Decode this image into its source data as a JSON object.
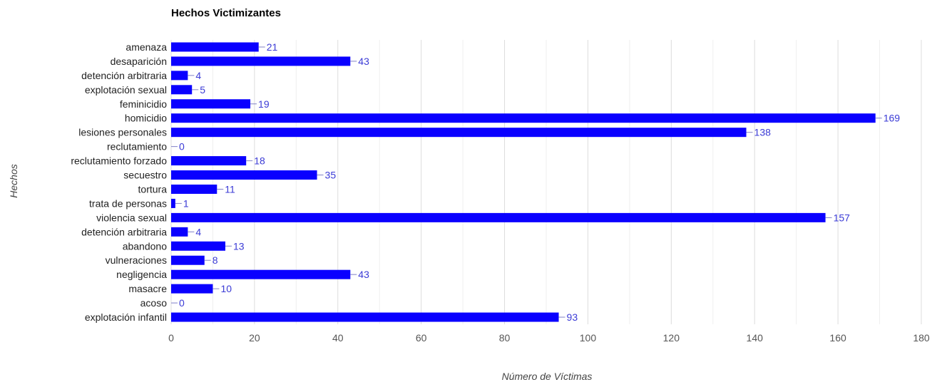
{
  "chart_data": {
    "type": "bar",
    "orientation": "horizontal",
    "title": "Hechos Victimizantes",
    "xlabel": "Número de Víctimas",
    "ylabel": "Hechos",
    "categories": [
      "amenaza",
      "desaparición",
      "detención arbitraria",
      "explotación sexual",
      "feminicidio",
      "homicidio",
      "lesiones personales",
      "reclutamiento",
      "reclutamiento forzado",
      "secuestro",
      "tortura",
      "trata de personas",
      "violencia sexual",
      "detención arbitraria",
      "abandono",
      "vulneraciones",
      "negligencia",
      "masacre",
      "acoso",
      "explotación infantil"
    ],
    "values": [
      21,
      43,
      4,
      5,
      19,
      169,
      138,
      0,
      18,
      35,
      11,
      1,
      157,
      4,
      13,
      8,
      43,
      10,
      0,
      93
    ],
    "xlim": [
      0,
      180
    ],
    "xticks": [
      0,
      20,
      40,
      60,
      80,
      100,
      120,
      140,
      160,
      180
    ],
    "grid": true,
    "colors": {
      "bar": "#0a00ff",
      "label": "#3b3bd6",
      "grid": "#dcdcdc"
    }
  }
}
